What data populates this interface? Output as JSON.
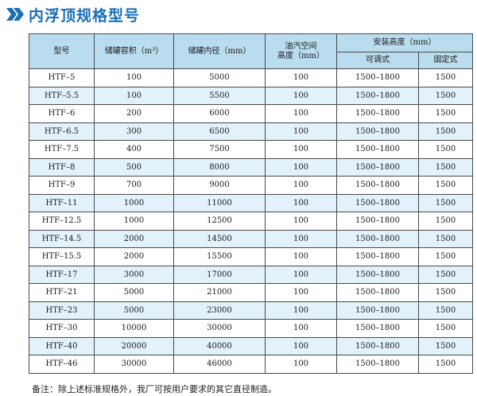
{
  "title": "内浮顶规格型号",
  "icon": "double-chevron-right-icon",
  "accent_color": "#1a6fb7",
  "header_color": "#b9dcef",
  "stripe_color": "#e2f1fa",
  "table": {
    "headers": {
      "model": "型号",
      "volume": "储罐容积（m³）",
      "diameter": "储罐内径（mm）",
      "vapor_line1": "油汽空间",
      "vapor_line2": "高度（mm）",
      "install": "安装高度（mm）",
      "adjustable": "可调式",
      "fixed": "固定式"
    },
    "rows": [
      [
        "HTF–5",
        "100",
        "5000",
        "100",
        "1500–1800",
        "1500"
      ],
      [
        "HTF–5.5",
        "100",
        "5500",
        "100",
        "1500–1800",
        "1500"
      ],
      [
        "HTF–6",
        "200",
        "6000",
        "100",
        "1500–1800",
        "1500"
      ],
      [
        "HTF–6.5",
        "300",
        "6500",
        "100",
        "1500–1800",
        "1500"
      ],
      [
        "HTF–7.5",
        "400",
        "7500",
        "100",
        "1500–1800",
        "1500"
      ],
      [
        "HTF–8",
        "500",
        "8000",
        "100",
        "1500–1800",
        "1500"
      ],
      [
        "HTF–9",
        "700",
        "9000",
        "100",
        "1500–1800",
        "1500"
      ],
      [
        "HTF–11",
        "1000",
        "11000",
        "100",
        "1500–1800",
        "1500"
      ],
      [
        "HTF–12.5",
        "1000",
        "12500",
        "100",
        "1500–1800",
        "1500"
      ],
      [
        "HTF–14.5",
        "2000",
        "14500",
        "100",
        "1500–1800",
        "1500"
      ],
      [
        "HTF–15.5",
        "2000",
        "15500",
        "100",
        "1500–1800",
        "1500"
      ],
      [
        "HTF–17",
        "3000",
        "17000",
        "100",
        "1500–1800",
        "1500"
      ],
      [
        "HTF–21",
        "5000",
        "21000",
        "100",
        "1500–1800",
        "1500"
      ],
      [
        "HTF–23",
        "5000",
        "23000",
        "100",
        "1500–1800",
        "1500"
      ],
      [
        "HTF–30",
        "10000",
        "30000",
        "100",
        "1500–1800",
        "1500"
      ],
      [
        "HTF–40",
        "20000",
        "40000",
        "100",
        "1500–1800",
        "1500"
      ],
      [
        "HTF–46",
        "30000",
        "46000",
        "100",
        "1500–1800",
        "1500"
      ]
    ]
  },
  "footnote": "备注：除上述标准规格外，我厂可按用户要求的其它直径制造。"
}
